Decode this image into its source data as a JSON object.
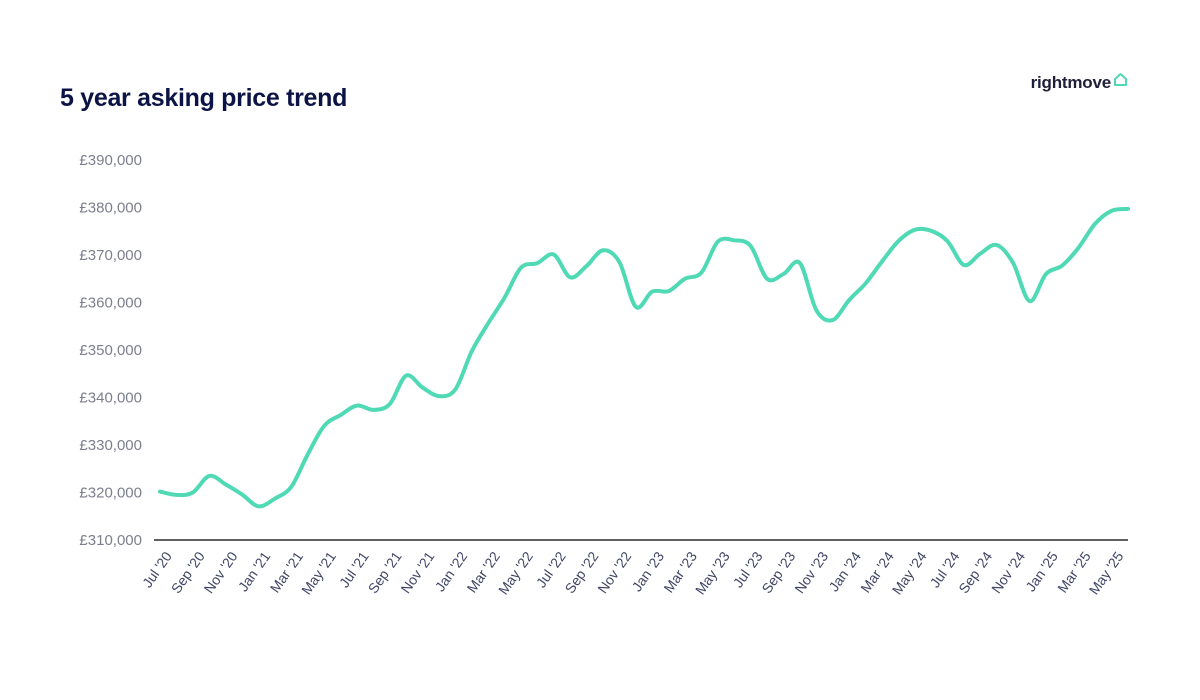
{
  "header": {
    "title": "5 year asking price trend",
    "brand": "rightmove",
    "brand_icon": "house-outline-icon"
  },
  "colors": {
    "line": "#4fd9b5",
    "title": "#0c1446",
    "axis": "#000000",
    "tick_text": "#7d7f8d"
  },
  "chart_data": {
    "type": "line",
    "title": "5 year asking price trend",
    "xlabel": "",
    "ylabel": "",
    "grid": false,
    "ylim": [
      310000,
      390000
    ],
    "yticks": [
      310000,
      320000,
      330000,
      340000,
      350000,
      360000,
      370000,
      380000,
      390000
    ],
    "ytick_labels": [
      "£310,000",
      "£320,000",
      "£330,000",
      "£340,000",
      "£350,000",
      "£360,000",
      "£370,000",
      "£380,000",
      "£390,000"
    ],
    "x_tick_labels": [
      "Jul '20",
      "Sep '20",
      "Nov '20",
      "Jan '21",
      "Mar '21",
      "May '21",
      "Jul '21",
      "Sep '21",
      "Nov '21",
      "Jan '22",
      "Mar '22",
      "May '22",
      "Jul '22",
      "Sep '22",
      "Nov '22",
      "Jan '23",
      "Mar '23",
      "May '23",
      "Jul '23",
      "Sep '23",
      "Nov '23",
      "Jan '24",
      "Mar '24",
      "May '24",
      "Jul '24",
      "Sep '24",
      "Nov '24",
      "Jan '25",
      "Mar '25",
      "May '25"
    ],
    "x": [
      "Jul '20",
      "Aug '20",
      "Sep '20",
      "Oct '20",
      "Nov '20",
      "Dec '20",
      "Jan '21",
      "Feb '21",
      "Mar '21",
      "Apr '21",
      "May '21",
      "Jun '21",
      "Jul '21",
      "Aug '21",
      "Sep '21",
      "Oct '21",
      "Nov '21",
      "Dec '21",
      "Jan '22",
      "Feb '22",
      "Mar '22",
      "Apr '22",
      "May '22",
      "Jun '22",
      "Jul '22",
      "Aug '22",
      "Sep '22",
      "Oct '22",
      "Nov '22",
      "Dec '22",
      "Jan '23",
      "Feb '23",
      "Mar '23",
      "Apr '23",
      "May '23",
      "Jun '23",
      "Jul '23",
      "Aug '23",
      "Sep '23",
      "Oct '23",
      "Nov '23",
      "Dec '23",
      "Jan '24",
      "Feb '24",
      "Mar '24",
      "Apr '24",
      "May '24",
      "Jun '24",
      "Jul '24",
      "Aug '24",
      "Sep '24",
      "Oct '24",
      "Nov '24",
      "Dec '24",
      "Jan '25",
      "Feb '25",
      "Mar '25",
      "Apr '25",
      "May '25",
      "Jun '25"
    ],
    "series": [
      {
        "values": [
          320200,
          319500,
          320000,
          323500,
          321700,
          319600,
          317100,
          318700,
          321200,
          328000,
          334000,
          336300,
          338300,
          337400,
          338600,
          344600,
          342100,
          340300,
          341700,
          349700,
          355600,
          361000,
          367300,
          368300,
          370100,
          365300,
          367700,
          371000,
          368500,
          359100,
          362300,
          362400,
          365000,
          366300,
          372800,
          373100,
          371900,
          365000,
          366000,
          368300,
          358400,
          356300,
          360500,
          364000,
          368600,
          372900,
          375300,
          375100,
          372900,
          367900,
          370300,
          372100,
          368300,
          360300,
          366000,
          367800,
          371600,
          376600,
          379300,
          379700
        ]
      }
    ]
  }
}
